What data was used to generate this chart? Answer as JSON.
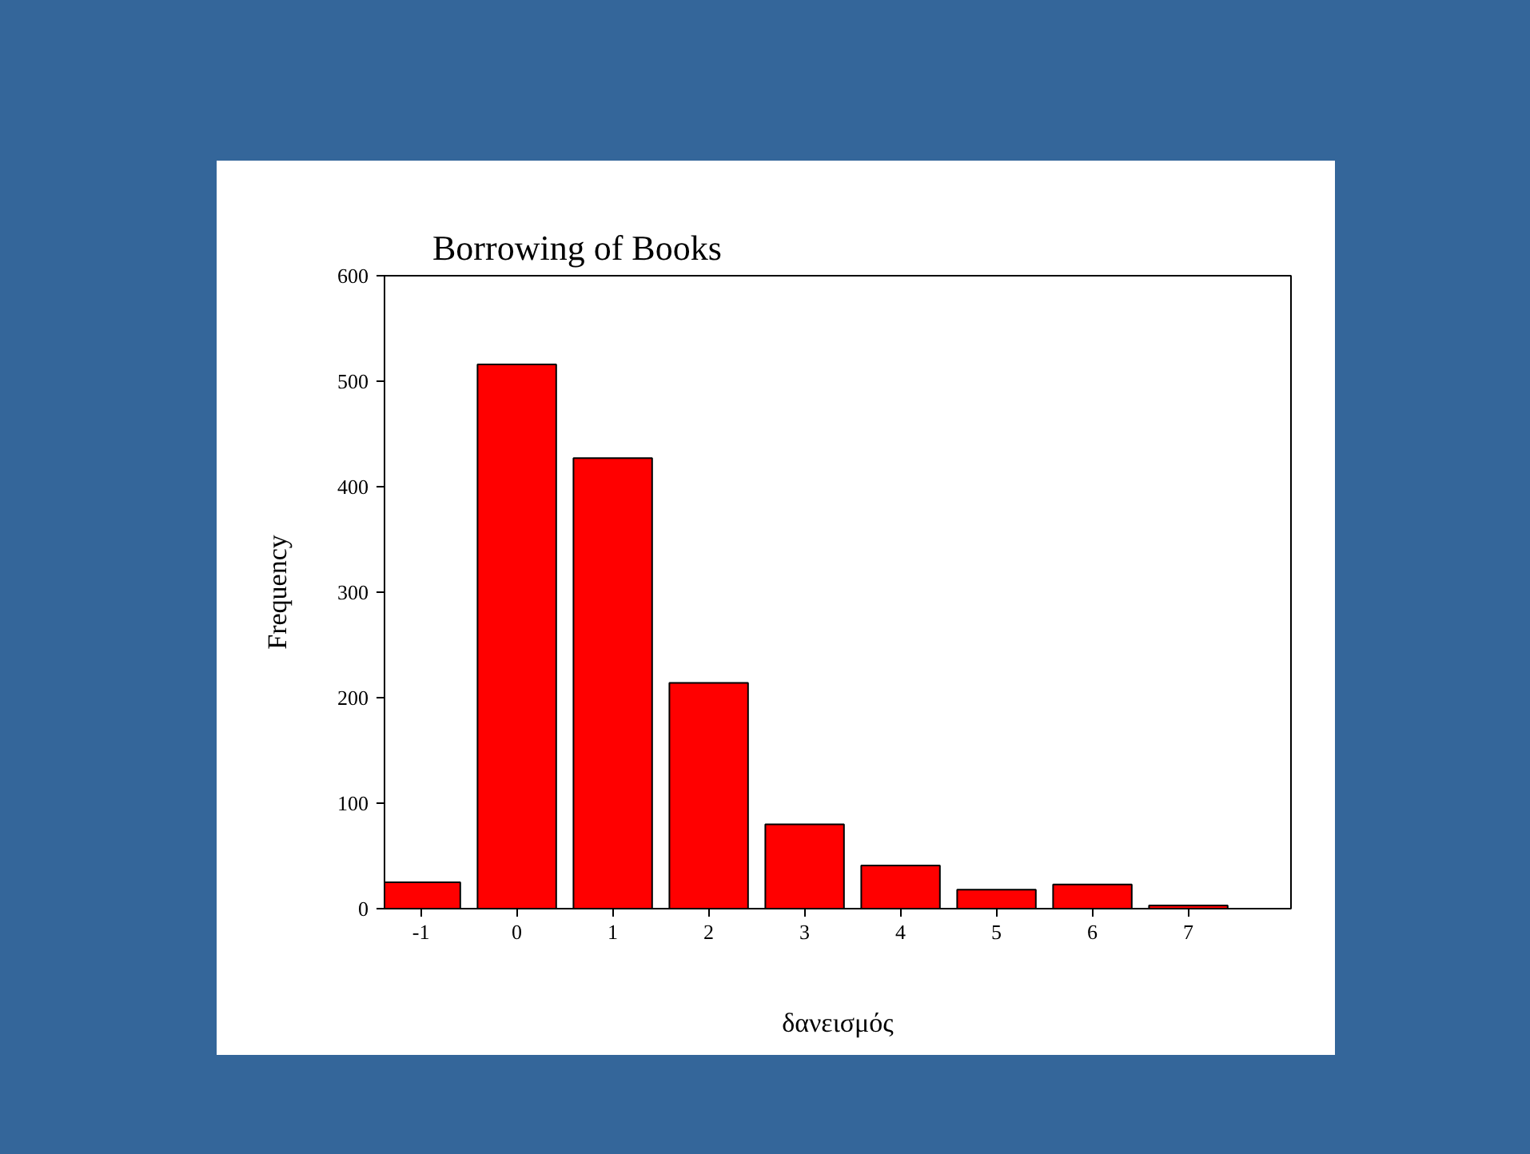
{
  "chart_data": {
    "type": "bar",
    "title": "Borrowing of Books",
    "xlabel": "δανεισμός",
    "ylabel": "Frequency",
    "categories": [
      "-1",
      "0",
      "1",
      "2",
      "3",
      "4",
      "5",
      "6",
      "7"
    ],
    "values": [
      25,
      516,
      427,
      214,
      80,
      41,
      18,
      23,
      3
    ],
    "color": "#ff0000",
    "ylim": [
      0,
      600
    ],
    "yticks": [
      0,
      100,
      200,
      300,
      400,
      500,
      600
    ],
    "grid": false
  }
}
